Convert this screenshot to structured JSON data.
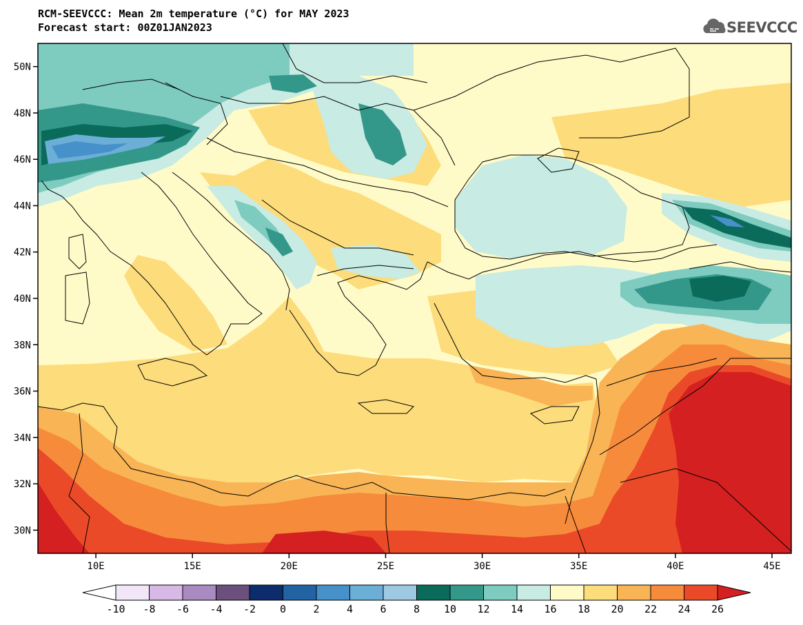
{
  "title": {
    "line1": "RCM-SEEVCCC: Mean 2m temperature (°C) for MAY 2023",
    "line2": "Forecast start: 00Z01JAN2023"
  },
  "logo": {
    "text": "SEEVCCC",
    "icon": "cloud-logo-icon"
  },
  "map": {
    "projection": "lat-lon",
    "lon_range": [
      7,
      46
    ],
    "lat_range": [
      29,
      51
    ],
    "lat_ticks": [
      {
        "value": 30,
        "label": "30N"
      },
      {
        "value": 32,
        "label": "32N"
      },
      {
        "value": 34,
        "label": "34N"
      },
      {
        "value": 36,
        "label": "36N"
      },
      {
        "value": 38,
        "label": "38N"
      },
      {
        "value": 40,
        "label": "40N"
      },
      {
        "value": 42,
        "label": "42N"
      },
      {
        "value": 44,
        "label": "44N"
      },
      {
        "value": 46,
        "label": "46N"
      },
      {
        "value": 48,
        "label": "48N"
      },
      {
        "value": 50,
        "label": "50N"
      }
    ],
    "lon_ticks": [
      {
        "value": 10,
        "label": "10E"
      },
      {
        "value": 15,
        "label": "15E"
      },
      {
        "value": 20,
        "label": "20E"
      },
      {
        "value": 25,
        "label": "25E"
      },
      {
        "value": 30,
        "label": "30E"
      },
      {
        "value": 35,
        "label": "35E"
      },
      {
        "value": 40,
        "label": "40E"
      },
      {
        "value": 45,
        "label": "45E"
      }
    ]
  },
  "colorbar": {
    "levels": [
      "-10",
      "-8",
      "-6",
      "-4",
      "-2",
      "0",
      "2",
      "4",
      "6",
      "8",
      "10",
      "12",
      "14",
      "16",
      "18",
      "20",
      "22",
      "24",
      "26"
    ],
    "colors": [
      "#f1e7f7",
      "#d8b8e4",
      "#a98bc2",
      "#6b4f7c",
      "#0c2c6b",
      "#2264a3",
      "#4691c9",
      "#6baed6",
      "#9ec9e2",
      "#0b6b5b",
      "#33978a",
      "#7ecbbf",
      "#c8ebe3",
      "#fffbc9",
      "#fddc7b",
      "#f9b456",
      "#f68b3c",
      "#ea4a28"
    ],
    "under_color": "#ffffff",
    "over_color": "#d42020"
  }
}
